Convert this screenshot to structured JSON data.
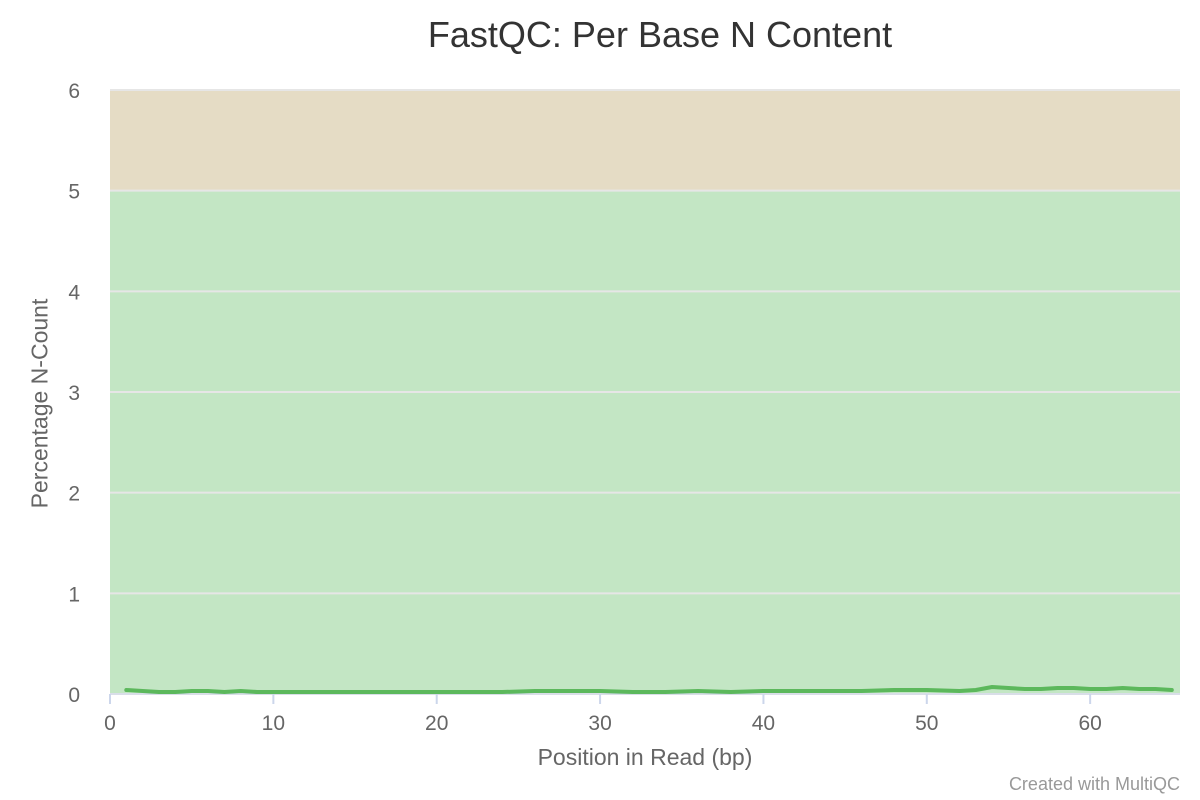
{
  "chart_data": {
    "type": "line",
    "title": "FastQC: Per Base N Content",
    "xlabel": "Position in Read (bp)",
    "ylabel": "Percentage N-Count",
    "xlim": [
      0,
      65.5
    ],
    "ylim": [
      0,
      6
    ],
    "x_ticks": [
      0,
      10,
      20,
      30,
      40,
      50,
      60
    ],
    "y_ticks": [
      0,
      1,
      2,
      3,
      4,
      5,
      6
    ],
    "grid": true,
    "bands": [
      {
        "from": 0,
        "to": 5,
        "color": "#c3e6c4"
      },
      {
        "from": 5,
        "to": 6,
        "color": "#e5dcc5"
      }
    ],
    "series": [
      {
        "color": "#5cb85c",
        "x": [
          1,
          2,
          3,
          4,
          5,
          6,
          7,
          8,
          9,
          10,
          12,
          14,
          16,
          18,
          20,
          22,
          24,
          26,
          28,
          30,
          32,
          34,
          36,
          38,
          40,
          42,
          44,
          46,
          48,
          50,
          52,
          53,
          54,
          55,
          56,
          57,
          58,
          59,
          60,
          61,
          62,
          63,
          64,
          65
        ],
        "values": [
          0.04,
          0.03,
          0.02,
          0.02,
          0.03,
          0.03,
          0.02,
          0.03,
          0.02,
          0.02,
          0.02,
          0.02,
          0.02,
          0.02,
          0.02,
          0.02,
          0.02,
          0.03,
          0.03,
          0.03,
          0.02,
          0.02,
          0.03,
          0.02,
          0.03,
          0.03,
          0.03,
          0.03,
          0.04,
          0.04,
          0.03,
          0.04,
          0.07,
          0.06,
          0.05,
          0.05,
          0.06,
          0.06,
          0.05,
          0.05,
          0.06,
          0.05,
          0.05,
          0.04
        ]
      }
    ]
  },
  "footer": {
    "credit": "Created with MultiQC"
  }
}
